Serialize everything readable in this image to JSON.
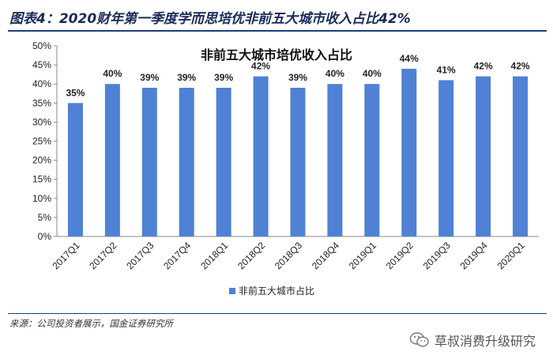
{
  "figure": {
    "title": "图表4：2020财年第一季度学而思培优非前五大城市收入占比42%",
    "source": "来源：公司投资者展示，国金证券研究所",
    "watermark": "草叔消费升级研究"
  },
  "colors": {
    "bar": "#4f81d4",
    "axis": "#888888",
    "text": "#222222"
  },
  "chart_data": {
    "type": "bar",
    "title": "非前五大城市培优收入占比",
    "categories": [
      "2017Q1",
      "2017Q2",
      "2017Q3",
      "2017Q4",
      "2018Q1",
      "2018Q2",
      "2018Q3",
      "2018Q4",
      "2019Q1",
      "2019Q2",
      "2019Q3",
      "2019Q4",
      "2020Q1"
    ],
    "series": [
      {
        "name": "非前五大城市占比",
        "values": [
          35,
          40,
          39,
          39,
          39,
          42,
          39,
          40,
          40,
          44,
          41,
          42,
          42
        ]
      }
    ],
    "data_labels": [
      "35%",
      "40%",
      "39%",
      "39%",
      "39%",
      "42%",
      "39%",
      "40%",
      "40%",
      "44%",
      "41%",
      "42%",
      "42%"
    ],
    "yticks": [
      "0%",
      "5%",
      "10%",
      "15%",
      "20%",
      "25%",
      "30%",
      "35%",
      "40%",
      "45%",
      "50%"
    ],
    "ylim": [
      0,
      50
    ],
    "xlabel": "",
    "ylabel": "",
    "legend": "bottom-center",
    "grid": false
  }
}
